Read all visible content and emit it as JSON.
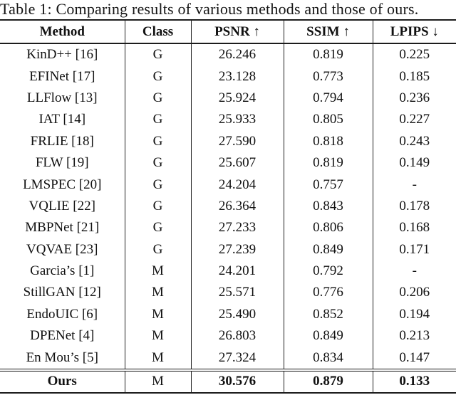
{
  "caption": "Table 1: Comparing results of various methods and those of ours.",
  "table": {
    "columns": [
      "Method",
      "Class",
      "PSNR ↑",
      "SSIM ↑",
      "LPIPS ↓"
    ],
    "rows": [
      {
        "method": "KinD++ [16]",
        "class": "G",
        "psnr": "26.246",
        "ssim": "0.819",
        "lpips": "0.225"
      },
      {
        "method": "EFINet [17]",
        "class": "G",
        "psnr": "23.128",
        "ssim": "0.773",
        "lpips": "0.185"
      },
      {
        "method": "LLFlow [13]",
        "class": "G",
        "psnr": "25.924",
        "ssim": "0.794",
        "lpips": "0.236"
      },
      {
        "method": "IAT [14]",
        "class": "G",
        "psnr": "25.933",
        "ssim": "0.805",
        "lpips": "0.227"
      },
      {
        "method": "FRLIE [18]",
        "class": "G",
        "psnr": "27.590",
        "ssim": "0.818",
        "lpips": "0.243"
      },
      {
        "method": "FLW [19]",
        "class": "G",
        "psnr": "25.607",
        "ssim": "0.819",
        "lpips": "0.149"
      },
      {
        "method": "LMSPEC [20]",
        "class": "G",
        "psnr": "24.204",
        "ssim": "0.757",
        "lpips": "-"
      },
      {
        "method": "VQLIE [22]",
        "class": "G",
        "psnr": "26.364",
        "ssim": "0.843",
        "lpips": "0.178"
      },
      {
        "method": "MBPNet [21]",
        "class": "G",
        "psnr": "27.233",
        "ssim": "0.806",
        "lpips": "0.168"
      },
      {
        "method": "VQVAE [23]",
        "class": "G",
        "psnr": "27.239",
        "ssim": "0.849",
        "lpips": "0.171"
      },
      {
        "method": "Garcia’s [1]",
        "class": "M",
        "psnr": "24.201",
        "ssim": "0.792",
        "lpips": "-"
      },
      {
        "method": "StillGAN [12]",
        "class": "M",
        "psnr": "25.571",
        "ssim": "0.776",
        "lpips": "0.206"
      },
      {
        "method": "EndoUIC [6]",
        "class": "M",
        "psnr": "25.490",
        "ssim": "0.852",
        "lpips": "0.194"
      },
      {
        "method": "DPENet [4]",
        "class": "M",
        "psnr": "26.803",
        "ssim": "0.849",
        "lpips": "0.213"
      },
      {
        "method": "En Mou’s [5]",
        "class": "M",
        "psnr": "27.324",
        "ssim": "0.834",
        "lpips": "0.147"
      }
    ],
    "footer_row": {
      "method": "Ours",
      "class": "M",
      "psnr": "30.576",
      "ssim": "0.879",
      "lpips": "0.133"
    }
  },
  "colors": {
    "text": "#111111",
    "rule": "#1c1c1c",
    "background": "#ffffff"
  }
}
